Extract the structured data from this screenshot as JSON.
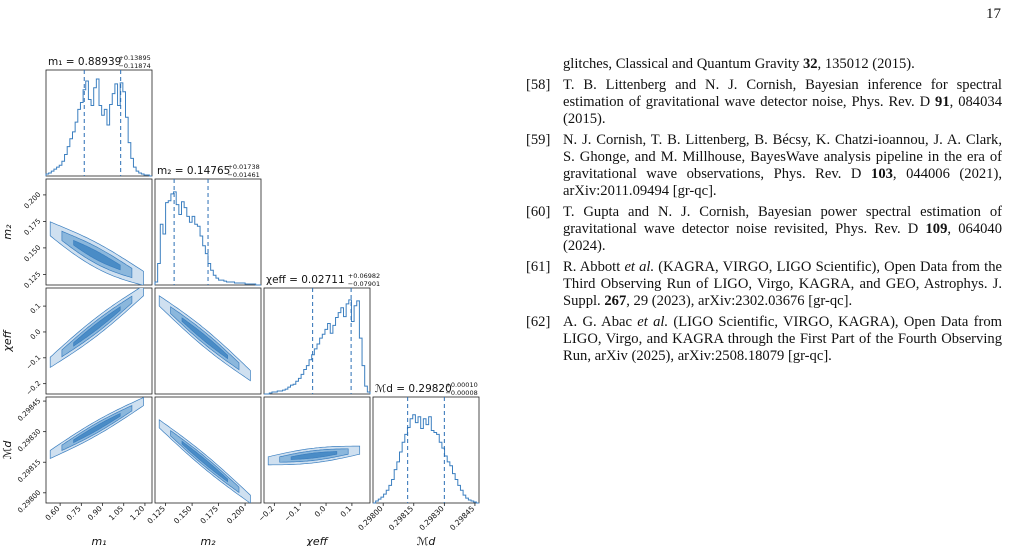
{
  "page": {
    "number": "17"
  },
  "chart_data": {
    "type": "corner",
    "parameters": [
      {
        "name": "m1",
        "label": "m₁",
        "range": [
          0.5,
          1.25
        ],
        "ticks": [
          0.6,
          0.75,
          0.9,
          1.05,
          1.2
        ],
        "tick_labels": [
          "0.60",
          "0.75",
          "0.90",
          "1.05",
          "1.20"
        ],
        "title": "m₁ = 0.88939",
        "err_plus": "+0.13895",
        "err_minus": "−0.11874",
        "quantiles": [
          0.77065,
          0.88939,
          1.02834
        ],
        "hist": [
          0.02,
          0.03,
          0.05,
          0.07,
          0.09,
          0.11,
          0.15,
          0.22,
          0.3,
          0.38,
          0.45,
          0.55,
          0.68,
          0.75,
          0.88,
          0.97,
          0.78,
          0.72,
          0.9,
          0.99,
          0.72,
          0.62,
          0.68,
          0.52,
          0.73,
          0.84,
          0.94,
          0.72,
          0.95,
          0.86,
          0.6,
          0.34,
          0.18,
          0.09,
          0.05,
          0.03,
          0.02,
          0.01,
          0.01,
          0.0
        ]
      },
      {
        "name": "m2",
        "label": "m₂",
        "range": [
          0.115,
          0.215
        ],
        "ticks": [
          0.125,
          0.15,
          0.175,
          0.2
        ],
        "tick_labels": [
          "0.125",
          "0.150",
          "0.175",
          "0.200"
        ],
        "title": "m₂ = 0.14765",
        "err_plus": "+0.01738",
        "err_minus": "−0.01461",
        "quantiles": [
          0.13304,
          0.14765,
          0.16503
        ],
        "hist": [
          0.03,
          0.22,
          0.62,
          0.52,
          0.84,
          0.86,
          0.93,
          0.95,
          0.82,
          0.72,
          0.85,
          0.79,
          0.7,
          0.64,
          0.7,
          0.62,
          0.6,
          0.5,
          0.4,
          0.32,
          0.22,
          0.15,
          0.1,
          0.07,
          0.05,
          0.05,
          0.04,
          0.03,
          0.03,
          0.03,
          0.02,
          0.02,
          0.02,
          0.02,
          0.01,
          0.01,
          0.01,
          0.01,
          0.0,
          0.0
        ]
      },
      {
        "name": "chi_eff",
        "label": "χeff",
        "range": [
          -0.24,
          0.17
        ],
        "ticks": [
          -0.2,
          -0.1,
          0.0,
          0.1
        ],
        "tick_labels": [
          "−0.2",
          "−0.1",
          "0.0",
          "0.1"
        ],
        "title": "χeff = 0.02711",
        "err_plus": "+0.06982",
        "err_minus": "−0.07901",
        "quantiles": [
          -0.0519,
          0.02711,
          0.09693
        ],
        "hist": [
          0.0,
          0.0,
          0.01,
          0.02,
          0.02,
          0.03,
          0.03,
          0.04,
          0.05,
          0.07,
          0.09,
          0.1,
          0.13,
          0.16,
          0.2,
          0.25,
          0.29,
          0.35,
          0.4,
          0.46,
          0.51,
          0.57,
          0.61,
          0.66,
          0.72,
          0.62,
          0.7,
          0.78,
          0.83,
          0.88,
          0.79,
          0.92,
          0.96,
          0.74,
          0.9,
          0.95,
          0.57,
          0.29,
          0.08,
          0.02
        ]
      },
      {
        "name": "M_d",
        "label": "ℳd",
        "range": [
          0.29795,
          0.29847
        ],
        "ticks": [
          0.298,
          0.29815,
          0.2983,
          0.29845
        ],
        "tick_labels": [
          "0.29800",
          "0.29815",
          "0.29830",
          "0.29845"
        ],
        "title": "ℳd = 0.29820",
        "err_plus": "+0.00010",
        "err_minus": "−0.00008",
        "quantiles": [
          0.29812,
          0.2982,
          0.2983
        ],
        "hist": [
          0.0,
          0.02,
          0.04,
          0.06,
          0.09,
          0.13,
          0.18,
          0.24,
          0.34,
          0.42,
          0.52,
          0.62,
          0.7,
          0.77,
          0.86,
          0.9,
          0.82,
          0.88,
          0.76,
          0.86,
          0.8,
          0.88,
          0.74,
          0.72,
          0.7,
          0.62,
          0.56,
          0.48,
          0.42,
          0.38,
          0.3,
          0.24,
          0.18,
          0.13,
          0.08,
          0.05,
          0.03,
          0.02,
          0.01,
          0.0
        ]
      }
    ],
    "pairs": [
      {
        "x": "m1",
        "y": "m2",
        "a": 0.2165,
        "b": -0.1008,
        "c": 0.0175,
        "spread": 0.004,
        "maxx": 1.19,
        "curved": true
      },
      {
        "x": "m1",
        "y": "chi_eff",
        "a": -0.34,
        "b": 0.42,
        "c": 0.0,
        "spread": 0.012,
        "maxx": 1.19,
        "curved": false
      },
      {
        "x": "m2",
        "y": "chi_eff",
        "a": 0.52,
        "b": -3.36,
        "c": 0.0,
        "spread": 0.012,
        "maxx": 0.205,
        "curved": false
      },
      {
        "x": "m1",
        "y": "M_d",
        "a": 0.29798,
        "b": 0.000393,
        "c": 0.0,
        "spread": 1.2e-05,
        "maxx": 1.19,
        "curved": false
      },
      {
        "x": "m2",
        "y": "M_d",
        "a": 0.29885,
        "b": -0.0043,
        "c": 0.0,
        "spread": 1.2e-05,
        "maxx": 0.205,
        "curved": false
      },
      {
        "x": "chi_eff",
        "y": "M_d",
        "a": 0.29819,
        "b": 0.000148,
        "c": 0.0,
        "spread": 1.2e-05,
        "maxx": 0.13,
        "curved": false
      }
    ],
    "colors": {
      "line": "#3b7fc0",
      "fill_light": "#cfe0f0",
      "fill_mid": "#8bb7dc",
      "fill_dark": "#4a8cc6",
      "dashed": "#2c6fb5"
    }
  },
  "references": {
    "fragment": {
      "text": "glitches, Classical and Quantum Gravity ",
      "bold": "32",
      "after": ", 135012 (2015)."
    },
    "items": [
      {
        "num": "[58]",
        "before": "T. B. Littenberg and N. J. Cornish, Bayesian inference for spectral estimation of gravitational wave detector noise, Phys. Rev. D ",
        "bold": "91",
        "after": ", 084034 (2015)."
      },
      {
        "num": "[59]",
        "before": "N. J. Cornish, T. B. Littenberg, B. Bécsy, K. Chatzi-ioannou, J. A. Clark, S. Ghonge, and M. Millhouse, BayesWave analysis pipeline in the era of gravitational wave observations, Phys. Rev. D ",
        "bold": "103",
        "after": ", 044006 (2021), arXiv:2011.09494 [gr-qc]."
      },
      {
        "num": "[60]",
        "before": "T. Gupta and N. J. Cornish, Bayesian power spectral estimation of gravitational wave detector noise revisited, Phys. Rev. D ",
        "bold": "109",
        "after": ", 064040 (2024)."
      },
      {
        "num": "[61]",
        "before": "R. Abbott ",
        "italic": "et al.",
        "mid": " (KAGRA, VIRGO, LIGO Scientific), Open Data from the Third Observing Run of LIGO, Virgo, KAGRA, and GEO, Astrophys. J. Suppl. ",
        "bold": "267",
        "after": ", 29 (2023), arXiv:2302.03676 [gr-qc]."
      },
      {
        "num": "[62]",
        "before": "A. G. Abac ",
        "italic": "et al.",
        "mid": " (LIGO Scientific, VIRGO, KAGRA), Open Data from LIGO, Virgo, and KAGRA through the First Part of the Fourth Observing Run, arXiv (2025), arXiv:2508.18079 [gr-qc].",
        "bold": "",
        "after": ""
      }
    ]
  }
}
